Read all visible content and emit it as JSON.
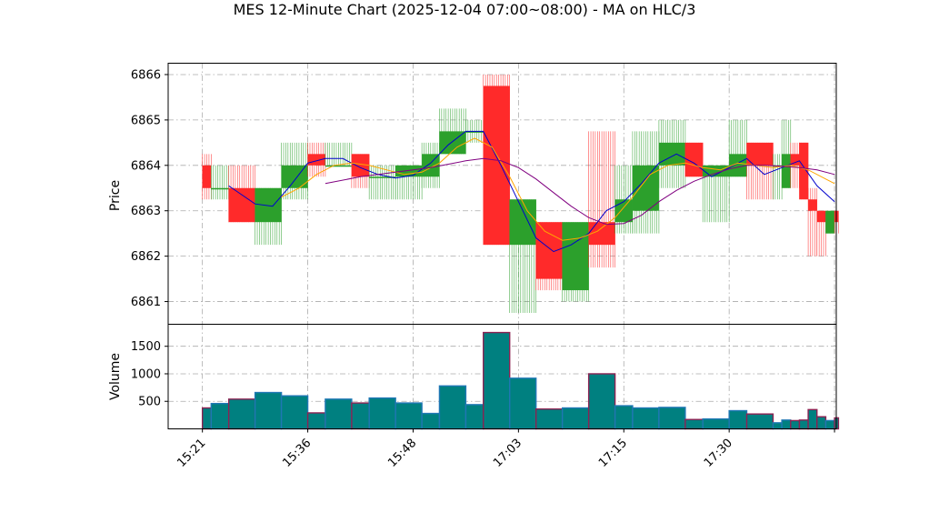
{
  "chart_data": {
    "type": "candlestick",
    "title": "MES 12-Minute Chart (2025-12-04 07:00~08:00) - MA on HLC/3",
    "price_panel": {
      "ylabel": "Price",
      "ylim": [
        6860.5,
        6866.25
      ],
      "yticks": [
        6861,
        6862,
        6863,
        6864,
        6865,
        6866
      ],
      "grid": true
    },
    "volume_panel": {
      "ylabel": "Volume",
      "ylim": [
        0,
        1900
      ],
      "yticks": [
        500,
        1000,
        1500
      ],
      "grid": true
    },
    "x_axis": {
      "xlim": [
        -3.9,
        72.2
      ],
      "ticks": [
        {
          "x": 0,
          "label": "15:21"
        },
        {
          "x": 12,
          "label": "15:36"
        },
        {
          "x": 24,
          "label": "15:48"
        },
        {
          "x": 36,
          "label": "17:03"
        },
        {
          "x": 48,
          "label": "17:15"
        },
        {
          "x": 60,
          "label": "17:30"
        },
        {
          "x": 72,
          "label": ""
        }
      ]
    },
    "colors": {
      "up": "#2ca02c",
      "down": "#ff2a2a",
      "ma_fast": "#0000cc",
      "ma_mid": "#ffa500",
      "ma_slow": "#800080",
      "volume_edge_down": "#8b2252",
      "volume_edge_up": "#1f77b4",
      "volume_fill": "#008080",
      "grid": "#aaaaaa"
    },
    "candles": [
      {
        "x": 0,
        "o": 6864.0,
        "h": 6864.25,
        "l": 6863.25,
        "c": 6863.5,
        "v": 380
      },
      {
        "x": 1,
        "o": 6863.5,
        "h": 6864.0,
        "l": 6863.25,
        "c": 6863.5,
        "v": 460
      },
      {
        "x": 3,
        "o": 6863.5,
        "h": 6864.0,
        "l": 6862.75,
        "c": 6862.75,
        "v": 540
      },
      {
        "x": 6,
        "o": 6862.75,
        "h": 6863.5,
        "l": 6862.25,
        "c": 6863.5,
        "v": 660
      },
      {
        "x": 9,
        "o": 6863.5,
        "h": 6864.5,
        "l": 6863.25,
        "c": 6864.0,
        "v": 600
      },
      {
        "x": 12,
        "o": 6864.25,
        "h": 6864.5,
        "l": 6863.75,
        "c": 6864.0,
        "v": 290
      },
      {
        "x": 14,
        "o": 6864.0,
        "h": 6864.5,
        "l": 6864.0,
        "c": 6864.0,
        "v": 540
      },
      {
        "x": 17,
        "o": 6864.25,
        "h": 6864.25,
        "l": 6863.5,
        "c": 6863.75,
        "v": 470
      },
      {
        "x": 19,
        "o": 6863.75,
        "h": 6864.0,
        "l": 6863.25,
        "c": 6863.75,
        "v": 560
      },
      {
        "x": 22,
        "o": 6863.75,
        "h": 6864.0,
        "l": 6863.25,
        "c": 6864.0,
        "v": 470
      },
      {
        "x": 25,
        "o": 6863.75,
        "h": 6864.5,
        "l": 6863.5,
        "c": 6864.25,
        "v": 280
      },
      {
        "x": 27,
        "o": 6864.25,
        "h": 6865.25,
        "l": 6864.25,
        "c": 6864.75,
        "v": 780
      },
      {
        "x": 30,
        "o": 6864.75,
        "h": 6865.0,
        "l": 6864.5,
        "c": 6864.75,
        "v": 440
      },
      {
        "x": 32,
        "o": 6865.75,
        "h": 6866.0,
        "l": 6862.25,
        "c": 6862.25,
        "v": 1750
      },
      {
        "x": 35,
        "o": 6862.25,
        "h": 6863.25,
        "l": 6860.75,
        "c": 6863.25,
        "v": 920
      },
      {
        "x": 38,
        "o": 6862.75,
        "h": 6862.75,
        "l": 6861.25,
        "c": 6861.5,
        "v": 360
      },
      {
        "x": 41,
        "o": 6861.25,
        "h": 6862.75,
        "l": 6861.0,
        "c": 6862.75,
        "v": 380
      },
      {
        "x": 44,
        "o": 6862.75,
        "h": 6864.75,
        "l": 6861.75,
        "c": 6862.25,
        "v": 1000
      },
      {
        "x": 47,
        "o": 6862.75,
        "h": 6864.0,
        "l": 6862.5,
        "c": 6863.25,
        "v": 420
      },
      {
        "x": 49,
        "o": 6863.0,
        "h": 6864.75,
        "l": 6862.5,
        "c": 6864.0,
        "v": 380
      },
      {
        "x": 52,
        "o": 6864.0,
        "h": 6865.0,
        "l": 6863.5,
        "c": 6864.5,
        "v": 390
      },
      {
        "x": 55,
        "o": 6864.5,
        "h": 6864.5,
        "l": 6863.75,
        "c": 6863.75,
        "v": 170
      },
      {
        "x": 57,
        "o": 6863.75,
        "h": 6864.0,
        "l": 6862.75,
        "c": 6864.0,
        "v": 180
      },
      {
        "x": 60,
        "o": 6863.75,
        "h": 6865.0,
        "l": 6863.75,
        "c": 6864.25,
        "v": 330
      },
      {
        "x": 62,
        "o": 6864.5,
        "h": 6864.5,
        "l": 6863.25,
        "c": 6864.0,
        "v": 270
      },
      {
        "x": 65,
        "o": 6864.0,
        "h": 6864.25,
        "l": 6863.25,
        "c": 6864.0,
        "v": 110
      },
      {
        "x": 66,
        "o": 6863.5,
        "h": 6865.0,
        "l": 6863.5,
        "c": 6864.25,
        "v": 160
      },
      {
        "x": 67,
        "o": 6864.25,
        "h": 6864.5,
        "l": 6863.5,
        "c": 6864.0,
        "v": 150
      },
      {
        "x": 68,
        "o": 6864.5,
        "h": 6864.5,
        "l": 6863.25,
        "c": 6863.25,
        "v": 160
      },
      {
        "x": 69,
        "o": 6863.25,
        "h": 6863.5,
        "l": 6862.0,
        "c": 6863.0,
        "v": 350
      },
      {
        "x": 70,
        "o": 6863.0,
        "h": 6863.0,
        "l": 6862.0,
        "c": 6862.75,
        "v": 220
      },
      {
        "x": 71,
        "o": 6862.5,
        "h": 6863.0,
        "l": 6862.5,
        "c": 6863.0,
        "v": 150
      },
      {
        "x": 72,
        "o": 6863.0,
        "h": 6863.0,
        "l": 6862.5,
        "c": 6862.75,
        "v": 200
      }
    ],
    "ma_series": [
      {
        "color": "ma_fast",
        "points": [
          [
            3,
            6863.55
          ],
          [
            6,
            6863.15
          ],
          [
            8,
            6863.1
          ],
          [
            10,
            6863.55
          ],
          [
            12,
            6864.05
          ],
          [
            14,
            6864.15
          ],
          [
            16,
            6864.15
          ],
          [
            18,
            6863.95
          ],
          [
            20,
            6863.8
          ],
          [
            22,
            6863.72
          ],
          [
            24,
            6863.78
          ],
          [
            26,
            6864.05
          ],
          [
            28,
            6864.45
          ],
          [
            30,
            6864.75
          ],
          [
            32,
            6864.75
          ],
          [
            34,
            6864.0
          ],
          [
            36,
            6863.2
          ],
          [
            38,
            6862.4
          ],
          [
            40,
            6862.1
          ],
          [
            42,
            6862.25
          ],
          [
            44,
            6862.5
          ],
          [
            46,
            6863.0
          ],
          [
            48,
            6863.2
          ],
          [
            50,
            6863.6
          ],
          [
            52,
            6864.05
          ],
          [
            54,
            6864.25
          ],
          [
            56,
            6864.05
          ],
          [
            58,
            6863.75
          ],
          [
            60,
            6863.95
          ],
          [
            62,
            6864.15
          ],
          [
            64,
            6863.8
          ],
          [
            66,
            6863.95
          ],
          [
            68,
            6864.1
          ],
          [
            70,
            6863.55
          ],
          [
            72,
            6863.2
          ]
        ]
      },
      {
        "color": "ma_mid",
        "points": [
          [
            9,
            6863.3
          ],
          [
            11,
            6863.5
          ],
          [
            13,
            6863.8
          ],
          [
            15,
            6864.0
          ],
          [
            17,
            6864.05
          ],
          [
            19,
            6864.0
          ],
          [
            21,
            6863.9
          ],
          [
            23,
            6863.8
          ],
          [
            25,
            6863.85
          ],
          [
            27,
            6864.05
          ],
          [
            29,
            6864.4
          ],
          [
            31,
            6864.6
          ],
          [
            33,
            6864.4
          ],
          [
            35,
            6863.75
          ],
          [
            37,
            6863.0
          ],
          [
            39,
            6862.55
          ],
          [
            41,
            6862.35
          ],
          [
            43,
            6862.4
          ],
          [
            45,
            6862.55
          ],
          [
            47,
            6862.85
          ],
          [
            49,
            6863.3
          ],
          [
            51,
            6863.8
          ],
          [
            53,
            6864.0
          ],
          [
            55,
            6864.05
          ],
          [
            57,
            6863.95
          ],
          [
            59,
            6863.9
          ],
          [
            61,
            6864.05
          ],
          [
            63,
            6864.0
          ],
          [
            65,
            6863.95
          ],
          [
            67,
            6864.0
          ],
          [
            69,
            6863.9
          ],
          [
            71,
            6863.7
          ],
          [
            72,
            6863.6
          ]
        ]
      },
      {
        "color": "ma_slow",
        "points": [
          [
            14,
            6863.6
          ],
          [
            18,
            6863.75
          ],
          [
            22,
            6863.85
          ],
          [
            26,
            6863.95
          ],
          [
            30,
            6864.1
          ],
          [
            32,
            6864.15
          ],
          [
            34,
            6864.1
          ],
          [
            36,
            6863.95
          ],
          [
            38,
            6863.7
          ],
          [
            40,
            6863.4
          ],
          [
            42,
            6863.1
          ],
          [
            44,
            6862.85
          ],
          [
            46,
            6862.7
          ],
          [
            48,
            6862.72
          ],
          [
            50,
            6862.9
          ],
          [
            52,
            6863.2
          ],
          [
            54,
            6863.45
          ],
          [
            56,
            6863.65
          ],
          [
            58,
            6863.8
          ],
          [
            60,
            6863.92
          ],
          [
            62,
            6864.0
          ],
          [
            64,
            6864.0
          ],
          [
            66,
            6863.98
          ],
          [
            68,
            6863.95
          ],
          [
            70,
            6863.9
          ],
          [
            72,
            6863.8
          ]
        ]
      }
    ]
  }
}
